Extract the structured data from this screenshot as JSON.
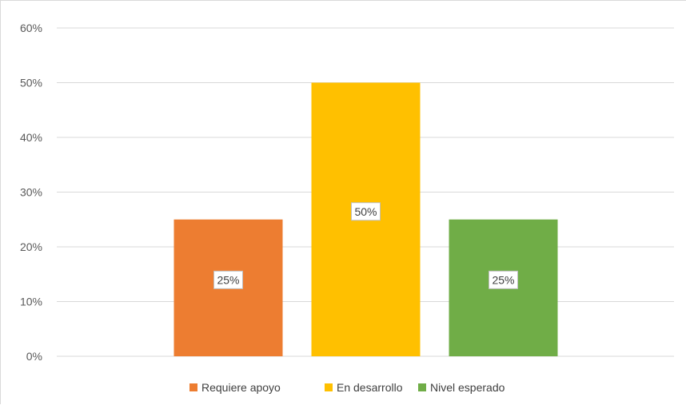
{
  "chart_data": {
    "type": "bar",
    "categories": [
      "Requiere apoyo",
      "En desarrollo",
      "Nivel esperado"
    ],
    "values": [
      25,
      50,
      25
    ],
    "data_labels": [
      "25%",
      "50%",
      "25%"
    ],
    "colors": [
      "#ED7D31",
      "#FFC000",
      "#70AD47"
    ],
    "ylim": [
      0,
      60
    ],
    "yticks": [
      "0%",
      "10%",
      "20%",
      "30%",
      "40%",
      "50%",
      "60%"
    ],
    "grid": true,
    "legend": {
      "position": "bottom",
      "entries": [
        "Requiere apoyo",
        "En desarrollo",
        "Nivel esperado"
      ]
    }
  }
}
